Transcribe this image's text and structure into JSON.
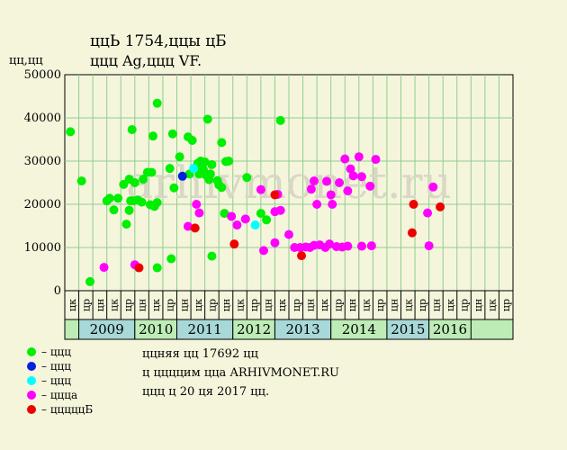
{
  "header": {
    "title": "ццЬ 1754,ццы цБ",
    "subtitle": "ццц Ag,ццц VF.",
    "y_unit": "цц,цц"
  },
  "legend": {
    "items": [
      {
        "label": "– ццц",
        "color": "#00ee00"
      },
      {
        "label": "– ццц",
        "color": "#0022dd"
      },
      {
        "label": "– ццц",
        "color": "#00ffff"
      },
      {
        "label": "– ццца",
        "color": "#ff00ff"
      },
      {
        "label": "– цццццБ",
        "color": "#ee0000"
      }
    ]
  },
  "info": {
    "line1": "ццняя цц 17692 цц",
    "line2": "ц ццццим цца ARHIVMONET.RU",
    "line3": "ццц ц 20 ця 2017 цц."
  },
  "watermark": "arhivmonet.ru",
  "colors": {
    "background": "#f5f5dc",
    "plot_bg": "#f5f5dc",
    "grid": "#8fce8f",
    "green": "#00ee00",
    "blue": "#0022dd",
    "cyan": "#00ffff",
    "magenta": "#ff00ff",
    "red": "#ee0000",
    "year_a": "#a8d8d8",
    "year_b": "#bdecb6"
  },
  "chart_data": {
    "type": "scatter",
    "ylim": [
      0,
      50000
    ],
    "yticks": [
      0,
      10000,
      20000,
      30000,
      40000,
      50000
    ],
    "xlim": [
      0,
      32
    ],
    "months": [
      "цк",
      "цр",
      "цн",
      "цк",
      "цр",
      "цн",
      "цк",
      "цр",
      "цн",
      "цк",
      "цр",
      "цн",
      "цк",
      "цр",
      "цн",
      "цк",
      "цр",
      "цн",
      "цк",
      "цр",
      "цн",
      "цк",
      "цр",
      "цн",
      "цк",
      "цр",
      "цн",
      "цк",
      "цр",
      "цн",
      "цк",
      "цр"
    ],
    "years": [
      {
        "label": "2009",
        "start": 1,
        "end": 5,
        "color": "#a8d8d8"
      },
      {
        "label": "2010",
        "start": 5,
        "end": 8,
        "color": "#bdecb6"
      },
      {
        "label": "2011",
        "start": 8,
        "end": 12,
        "color": "#a8d8d8"
      },
      {
        "label": "2012",
        "start": 12,
        "end": 15,
        "color": "#bdecb6"
      },
      {
        "label": "2013",
        "start": 15,
        "end": 19,
        "color": "#a8d8d8"
      },
      {
        "label": "2014",
        "start": 19,
        "end": 23,
        "color": "#bdecb6"
      },
      {
        "label": "2015",
        "start": 23,
        "end": 26,
        "color": "#a8d8d8"
      },
      {
        "label": "2016",
        "start": 26,
        "end": 29,
        "color": "#bdecb6"
      }
    ],
    "series": [
      {
        "color": "#00ee00",
        "points": [
          [
            0.4,
            36800
          ],
          [
            1.2,
            25400
          ],
          [
            1.8,
            2100
          ],
          [
            3.0,
            20800
          ],
          [
            3.2,
            21400
          ],
          [
            3.5,
            18700
          ],
          [
            3.8,
            21400
          ],
          [
            4.2,
            24600
          ],
          [
            4.4,
            15400
          ],
          [
            4.6,
            25800
          ],
          [
            4.6,
            18600
          ],
          [
            4.7,
            20800
          ],
          [
            4.8,
            37300
          ],
          [
            4.9,
            20800
          ],
          [
            5.0,
            25000
          ],
          [
            5.2,
            21000
          ],
          [
            5.5,
            20500
          ],
          [
            5.6,
            25800
          ],
          [
            5.9,
            27400
          ],
          [
            6.1,
            19900
          ],
          [
            6.2,
            27400
          ],
          [
            6.3,
            35800
          ],
          [
            6.4,
            19500
          ],
          [
            6.6,
            43400
          ],
          [
            6.6,
            20400
          ],
          [
            6.6,
            5300
          ],
          [
            7.5,
            28300
          ],
          [
            7.6,
            7400
          ],
          [
            7.7,
            36300
          ],
          [
            7.8,
            23800
          ],
          [
            8.2,
            31000
          ],
          [
            8.8,
            35600
          ],
          [
            8.9,
            27000
          ],
          [
            9.1,
            34800
          ],
          [
            9.3,
            28400
          ],
          [
            9.5,
            29500
          ],
          [
            9.6,
            27000
          ],
          [
            9.7,
            30000
          ],
          [
            9.9,
            28000
          ],
          [
            10.0,
            29800
          ],
          [
            10.1,
            26700
          ],
          [
            10.2,
            39700
          ],
          [
            10.3,
            25700
          ],
          [
            10.4,
            27000
          ],
          [
            10.5,
            29200
          ],
          [
            10.5,
            8000
          ],
          [
            10.9,
            25500
          ],
          [
            11.0,
            24500
          ],
          [
            11.2,
            23900
          ],
          [
            11.2,
            34300
          ],
          [
            11.4,
            17900
          ],
          [
            11.5,
            29900
          ],
          [
            11.7,
            30000
          ],
          [
            13.0,
            26200
          ],
          [
            14.0,
            17900
          ],
          [
            14.4,
            16400
          ],
          [
            15.4,
            39400
          ]
        ]
      },
      {
        "color": "#0022dd",
        "points": [
          [
            8.4,
            26500
          ]
        ]
      },
      {
        "color": "#00ffff",
        "points": [
          [
            9.2,
            28300
          ],
          [
            13.6,
            15200
          ]
        ]
      },
      {
        "color": "#ff00ff",
        "points": [
          [
            2.8,
            5400
          ],
          [
            5.0,
            6000
          ],
          [
            8.8,
            14900
          ],
          [
            9.4,
            20000
          ],
          [
            9.6,
            18000
          ],
          [
            11.9,
            17200
          ],
          [
            12.3,
            15200
          ],
          [
            12.9,
            16600
          ],
          [
            14.0,
            23400
          ],
          [
            14.2,
            9300
          ],
          [
            15.0,
            11100
          ],
          [
            15.0,
            18300
          ],
          [
            15.2,
            22300
          ],
          [
            15.4,
            18600
          ],
          [
            16.0,
            13000
          ],
          [
            16.4,
            10000
          ],
          [
            16.8,
            10000
          ],
          [
            17.2,
            10100
          ],
          [
            17.5,
            10000
          ],
          [
            17.6,
            23500
          ],
          [
            17.8,
            25400
          ],
          [
            17.8,
            10500
          ],
          [
            18.0,
            20000
          ],
          [
            18.2,
            10600
          ],
          [
            18.6,
            10000
          ],
          [
            18.7,
            25300
          ],
          [
            18.9,
            10800
          ],
          [
            19.0,
            22200
          ],
          [
            19.1,
            20000
          ],
          [
            19.4,
            10200
          ],
          [
            19.6,
            25000
          ],
          [
            19.8,
            10100
          ],
          [
            20.0,
            30500
          ],
          [
            20.2,
            10300
          ],
          [
            20.2,
            23100
          ],
          [
            20.4,
            28200
          ],
          [
            20.6,
            26600
          ],
          [
            21.0,
            31000
          ],
          [
            21.2,
            26400
          ],
          [
            21.2,
            10300
          ],
          [
            21.8,
            24200
          ],
          [
            21.9,
            10400
          ],
          [
            22.2,
            30400
          ],
          [
            25.9,
            18000
          ],
          [
            26.0,
            10400
          ],
          [
            26.3,
            24000
          ]
        ]
      },
      {
        "color": "#ee0000",
        "points": [
          [
            5.3,
            5300
          ],
          [
            9.3,
            14500
          ],
          [
            12.1,
            10800
          ],
          [
            15.0,
            22200
          ],
          [
            16.9,
            8100
          ],
          [
            24.8,
            13400
          ],
          [
            24.9,
            20000
          ],
          [
            26.8,
            19400
          ]
        ]
      }
    ]
  }
}
